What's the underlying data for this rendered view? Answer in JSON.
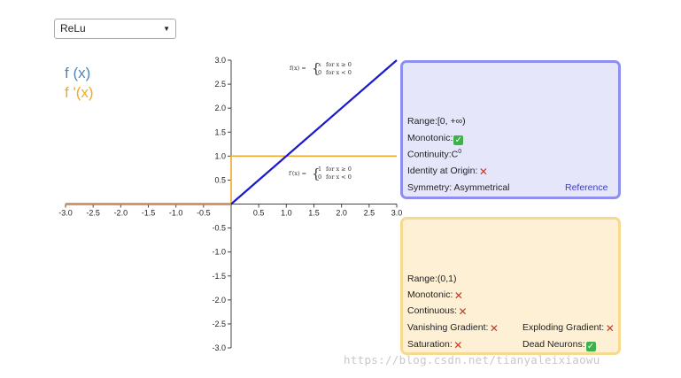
{
  "dropdown": {
    "selected": "ReLu"
  },
  "legend": {
    "f": "f (x)",
    "df": "f '(x)"
  },
  "colors": {
    "f": "#1a1acc",
    "df": "#f0a92a",
    "legend_f": "#4f86b5",
    "grey_line": "#cc8b5c"
  },
  "formulas": {
    "f": {
      "lhs": "f(x) =",
      "case1": "x",
      "cond1": "for x ≥ 0",
      "case2": "0",
      "cond2": "for x < 0"
    },
    "df": {
      "lhs": "f′(x) =",
      "case1": "1",
      "cond1": "for x ≥ 0",
      "case2": "0",
      "cond2": "for x < 0"
    }
  },
  "chart_data": {
    "type": "line",
    "x_ticks": [
      "-3.0",
      "-2.5",
      "-2.0",
      "-1.5",
      "-1.0",
      "-0.5",
      "0.5",
      "1.0",
      "1.5",
      "2.0",
      "2.5",
      "3.0"
    ],
    "y_ticks": [
      "3.0",
      "2.5",
      "2.0",
      "1.5",
      "1.0",
      "0.5",
      "-0.5",
      "-1.0",
      "-1.5",
      "-2.0",
      "-2.5",
      "-3.0"
    ],
    "xlim": [
      -3,
      3
    ],
    "ylim": [
      -3,
      3
    ],
    "series": [
      {
        "name": "f (x)",
        "x": [
          -3,
          0,
          3
        ],
        "y": [
          0,
          0,
          3
        ]
      },
      {
        "name": "f '(x)",
        "x": [
          -3,
          0,
          0,
          3
        ],
        "y": [
          0,
          0,
          1,
          1
        ]
      }
    ]
  },
  "function_panel": {
    "range": "Range:[0, +∞)",
    "monotonic_label": "Monotonic:",
    "monotonic": "✓",
    "continuity_label": "Continuity:C",
    "continuity_sup": "0",
    "identity_label": "Identity at Origin:",
    "identity": "✕",
    "symmetry": "Symmetry: Asymmetrical",
    "reference": "Reference"
  },
  "derivative_panel": {
    "range": "Range:(0,1)",
    "monotonic_label": "Monotonic:",
    "monotonic": "✕",
    "continuous_label": "Continuous:",
    "continuous": "✕",
    "vanishing_label": "Vanishing Gradient:",
    "vanishing": "✕",
    "exploding_label": "Exploding Gradient:",
    "exploding": "✕",
    "saturation_label": "Saturation:",
    "saturation": "✕",
    "dead_label": "Dead Neurons:",
    "dead": "✓"
  },
  "watermark": "https://blog.csdn.net/tianyaleixiaowu"
}
